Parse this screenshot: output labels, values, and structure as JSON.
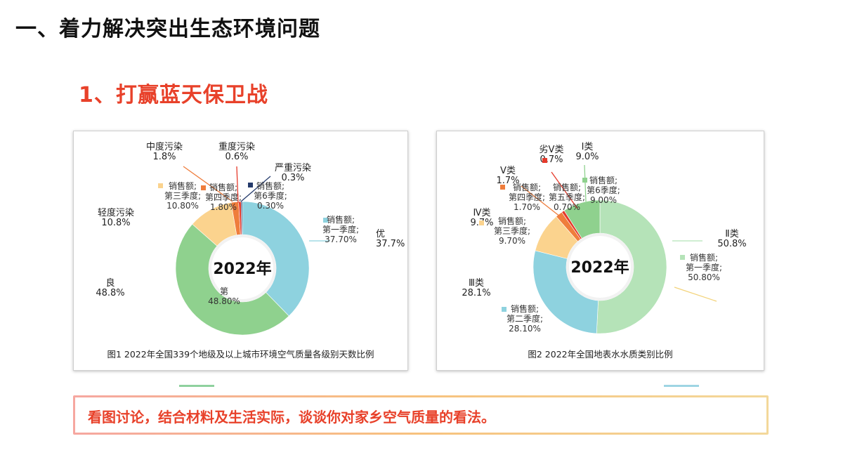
{
  "header": {
    "title": "一、着力解决突出生态环境问题",
    "section": "1、打赢蓝天保卫战"
  },
  "chart_data": [
    {
      "type": "pie",
      "center_label": "2022年",
      "caption": "图1 2022年全国339个地级及以上城市环境空气质量各级别天数比例",
      "slices": [
        {
          "name": "优",
          "value": 37.7,
          "label": "37.7%",
          "sub": [
            "销售额;",
            "第一季度;",
            "37.70%"
          ],
          "color": "#8ed2df"
        },
        {
          "name": "良",
          "value": 48.8,
          "label": "48.8%",
          "sub": [
            "第",
            "48.80%"
          ],
          "color": "#8fd18e"
        },
        {
          "name": "轻度污染",
          "value": 10.8,
          "label": "10.8%",
          "sub": [
            "销售额;",
            "第三季度;",
            "10.80%"
          ],
          "color": "#fbd38e"
        },
        {
          "name": "中度污染",
          "value": 1.8,
          "label": "1.8%",
          "sub": [
            "销售额;",
            "第四季度;",
            "1.80%"
          ],
          "color": "#ef7d3c"
        },
        {
          "name": "重度污染",
          "value": 0.6,
          "label": "0.6%",
          "sub": [],
          "color": "#e53a2b"
        },
        {
          "name": "严重污染",
          "value": 0.3,
          "label": "0.3%",
          "sub": [
            "销售额;",
            "第6季度;",
            "0.30%"
          ],
          "color": "#243a6b"
        }
      ]
    },
    {
      "type": "pie",
      "center_label": "2022年",
      "caption": "图2 2022年全国地表水水质类别比例",
      "slices": [
        {
          "name": "Ⅱ类",
          "value": 50.8,
          "label": "50.8%",
          "sub": [
            "销售额;",
            "第一季度;",
            "50.80%"
          ],
          "color": "#b5e3b8"
        },
        {
          "name": "Ⅲ类",
          "value": 28.1,
          "label": "28.1%",
          "sub": [
            "销售额;",
            "第二季度;",
            "28.10%"
          ],
          "color": "#8ed2df"
        },
        {
          "name": "Ⅳ类",
          "value": 9.7,
          "label": "9.7%",
          "sub": [
            "销售额;",
            "第三季度;",
            "9.70%"
          ],
          "color": "#fbd38e"
        },
        {
          "name": "Ⅴ类",
          "value": 1.7,
          "label": "1.7%",
          "sub": [
            "销售额;",
            "第四季度;",
            "1.70%"
          ],
          "color": "#ef7d3c"
        },
        {
          "name": "劣Ⅴ类",
          "value": 0.7,
          "label": "0.7%",
          "sub": [
            "销售额;",
            "第五季度;",
            "0.70%"
          ],
          "color": "#e53a2b"
        },
        {
          "name": "Ⅰ类",
          "value": 9.0,
          "label": "9.0%",
          "sub": [
            "销售额;",
            "第6季度;",
            "9.00%"
          ],
          "color": "#8fd18e"
        }
      ]
    }
  ],
  "discussion": {
    "prompt": "看图讨论，结合材料及生活实际，谈谈你对家乡空气质量的看法。"
  }
}
